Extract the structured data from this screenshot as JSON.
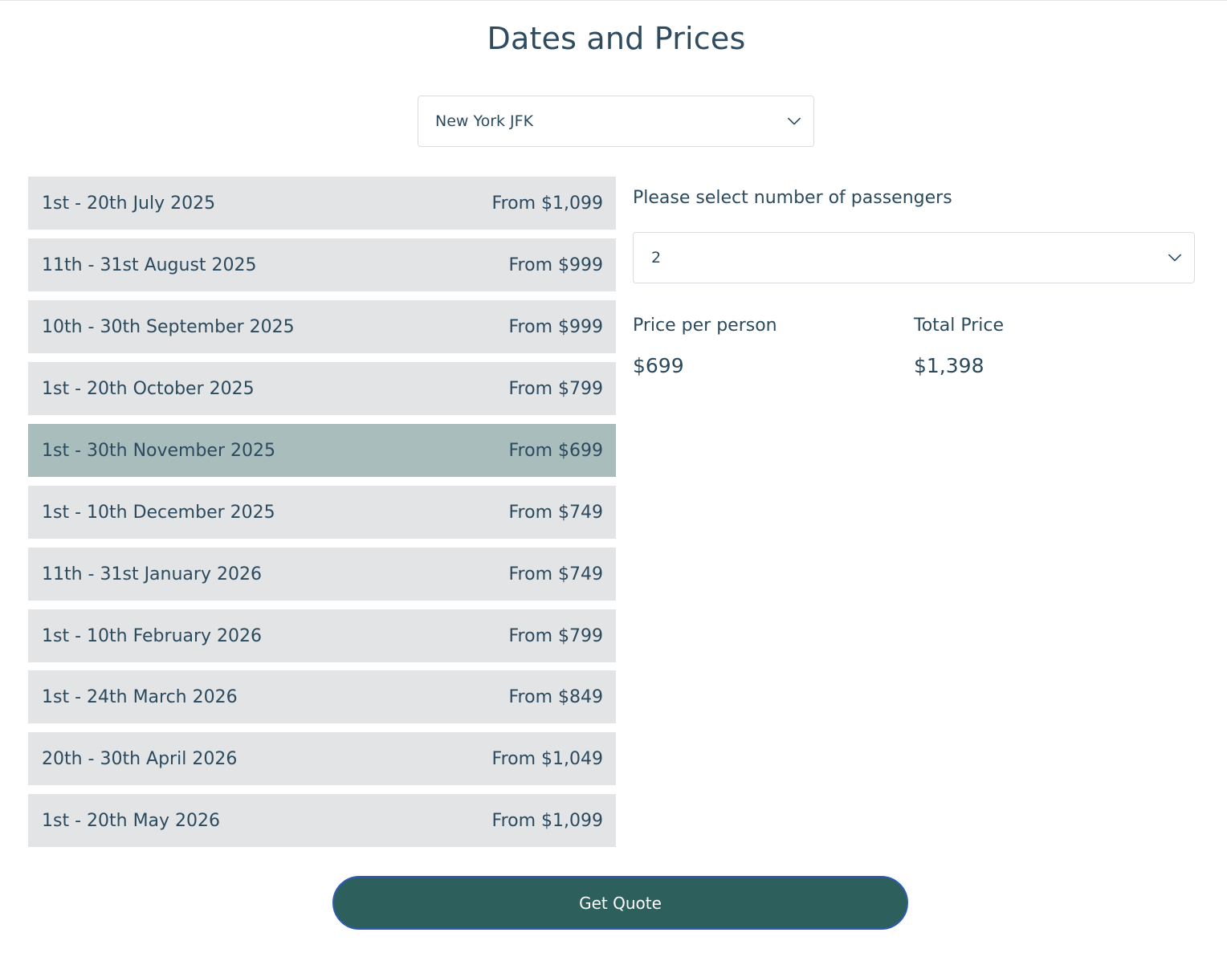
{
  "header": {
    "title": "Dates and Prices"
  },
  "departure": {
    "selected": "New York JFK"
  },
  "dates": [
    {
      "range": "1st - 20th July 2025",
      "price": "From $1,099",
      "selected": false
    },
    {
      "range": "11th - 31st August 2025",
      "price": "From $999",
      "selected": false
    },
    {
      "range": "10th - 30th September 2025",
      "price": "From $999",
      "selected": false
    },
    {
      "range": "1st - 20th October 2025",
      "price": "From $799",
      "selected": false
    },
    {
      "range": "1st - 30th November 2025",
      "price": "From $699",
      "selected": true
    },
    {
      "range": "1st - 10th December 2025",
      "price": "From $749",
      "selected": false
    },
    {
      "range": "11th - 31st January 2026",
      "price": "From $749",
      "selected": false
    },
    {
      "range": "1st - 10th February 2026",
      "price": "From $799",
      "selected": false
    },
    {
      "range": "1st - 24th March 2026",
      "price": "From $849",
      "selected": false
    },
    {
      "range": "20th - 30th April 2026",
      "price": "From $1,049",
      "selected": false
    },
    {
      "range": "1st - 20th May 2026",
      "price": "From $1,099",
      "selected": false
    }
  ],
  "passengers": {
    "prompt": "Please select number of passengers",
    "selected": "2"
  },
  "pricing": {
    "per_person_label": "Price per person",
    "per_person_value": "$699",
    "total_label": "Total Price",
    "total_value": "$1,398"
  },
  "actions": {
    "quote_label": "Get Quote"
  },
  "colors": {
    "text": "#2b4a5e",
    "row_bg": "#e3e4e6",
    "row_selected_bg": "#a9bdbd",
    "button_bg": "#2d5f5d",
    "button_border": "#2f5bb2"
  }
}
